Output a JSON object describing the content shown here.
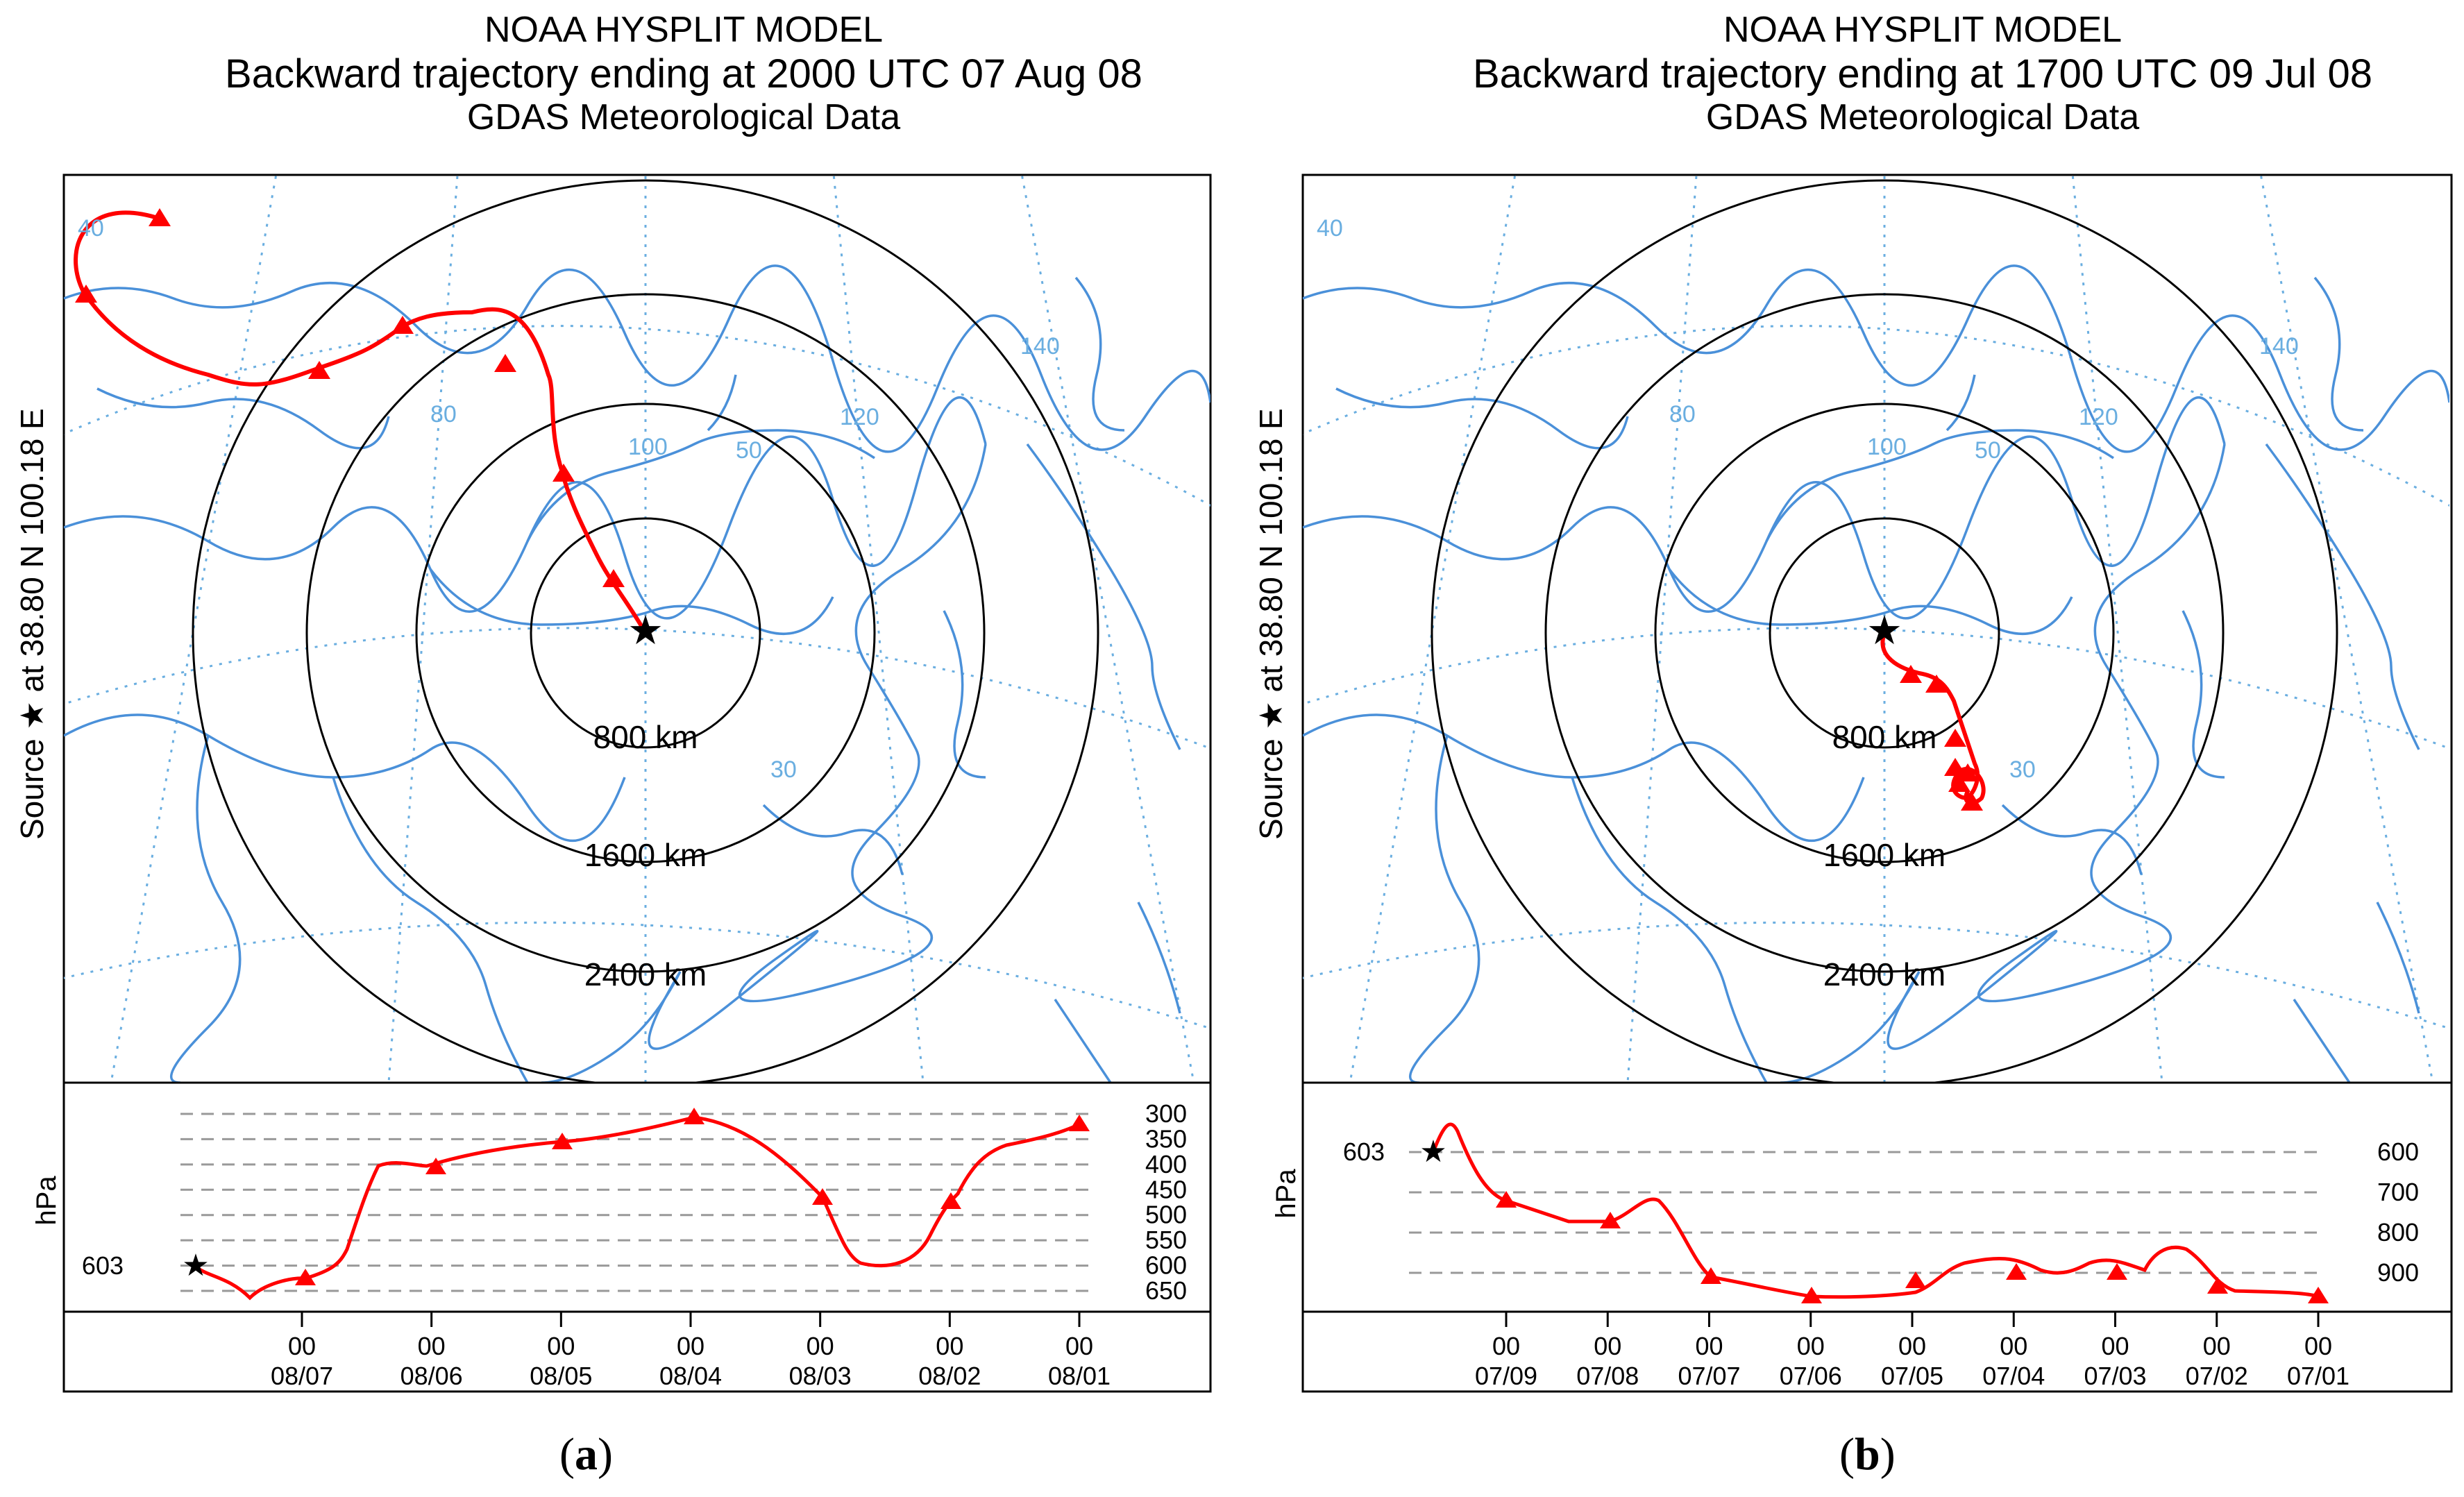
{
  "figure": {
    "panels": [
      {
        "id": "a",
        "label": "a",
        "title_line1": "NOAA HYSPLIT MODEL",
        "title_line2": "Backward trajectory ending at 2000 UTC 07 Aug 08",
        "title_line3": "GDAS Meteorological Data",
        "source_label": "Source ★ at   38.80 N   100.18 E",
        "ring_labels": [
          "800 km",
          "1600 km",
          "2400 km"
        ],
        "graticule_labels": [
          "140",
          "80",
          "100",
          "120",
          "50",
          "30",
          "40"
        ],
        "pressure_unit": "hPa",
        "source_pressure": "603",
        "pressure_ticks": [
          "300",
          "350",
          "400",
          "450",
          "500",
          "550",
          "600",
          "650"
        ],
        "time_ticks": [
          {
            "hour": "00",
            "date": "08/07"
          },
          {
            "hour": "00",
            "date": "08/06"
          },
          {
            "hour": "00",
            "date": "08/05"
          },
          {
            "hour": "00",
            "date": "08/04"
          },
          {
            "hour": "00",
            "date": "08/03"
          },
          {
            "hour": "00",
            "date": "08/02"
          },
          {
            "hour": "00",
            "date": "08/01"
          }
        ]
      },
      {
        "id": "b",
        "label": "b",
        "title_line1": "NOAA HYSPLIT MODEL",
        "title_line2": "Backward trajectory ending at 1700 UTC 09 Jul 08",
        "title_line3": "GDAS Meteorological Data",
        "source_label": "Source ★ at   38.80 N   100.18 E",
        "ring_labels": [
          "800 km",
          "1600 km",
          "2400 km"
        ],
        "graticule_labels": [
          "140",
          "80",
          "100",
          "120",
          "50",
          "30",
          "40"
        ],
        "pressure_unit": "hPa",
        "source_pressure": "603",
        "pressure_ticks": [
          "600",
          "700",
          "800",
          "900"
        ],
        "time_ticks": [
          {
            "hour": "00",
            "date": "07/09"
          },
          {
            "hour": "00",
            "date": "07/08"
          },
          {
            "hour": "00",
            "date": "07/07"
          },
          {
            "hour": "00",
            "date": "07/06"
          },
          {
            "hour": "00",
            "date": "07/05"
          },
          {
            "hour": "00",
            "date": "07/04"
          },
          {
            "hour": "00",
            "date": "07/03"
          },
          {
            "hour": "00",
            "date": "07/02"
          },
          {
            "hour": "00",
            "date": "07/01"
          }
        ]
      }
    ]
  },
  "colors": {
    "trajectory": "#ff0000",
    "map_lines": "#4a90d9",
    "graticule": "#6aaee0",
    "rings": "#000000",
    "grid": "#999999"
  }
}
